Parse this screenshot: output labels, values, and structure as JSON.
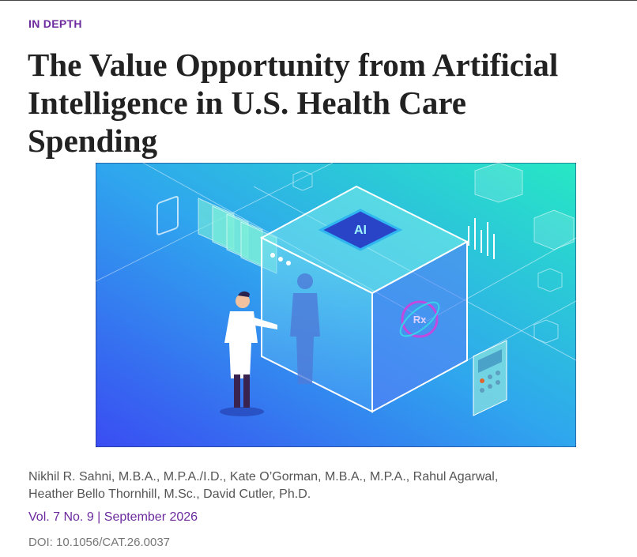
{
  "header": {
    "kicker": "IN DEPTH",
    "title_lines": [
      "The Value Opportunity from Artificial",
      "Intelligence in U.S. Health Care",
      "Spending"
    ]
  },
  "illustration": {
    "chip_label": "AI",
    "badge_label": "Rx"
  },
  "byline": {
    "author_lines": [
      "Nikhil R. Sahni, M.B.A., M.P.A./I.D., Kate O’Gorman, M.B.A., M.P.A., Rahul Agarwal,",
      "Heather Bello Thornhill, M.Sc., David Cutler, Ph.D."
    ],
    "issue": "Vol. 7 No. 9 | September 2026",
    "doi": "DOI: 10.1056/CAT.26.0037"
  }
}
